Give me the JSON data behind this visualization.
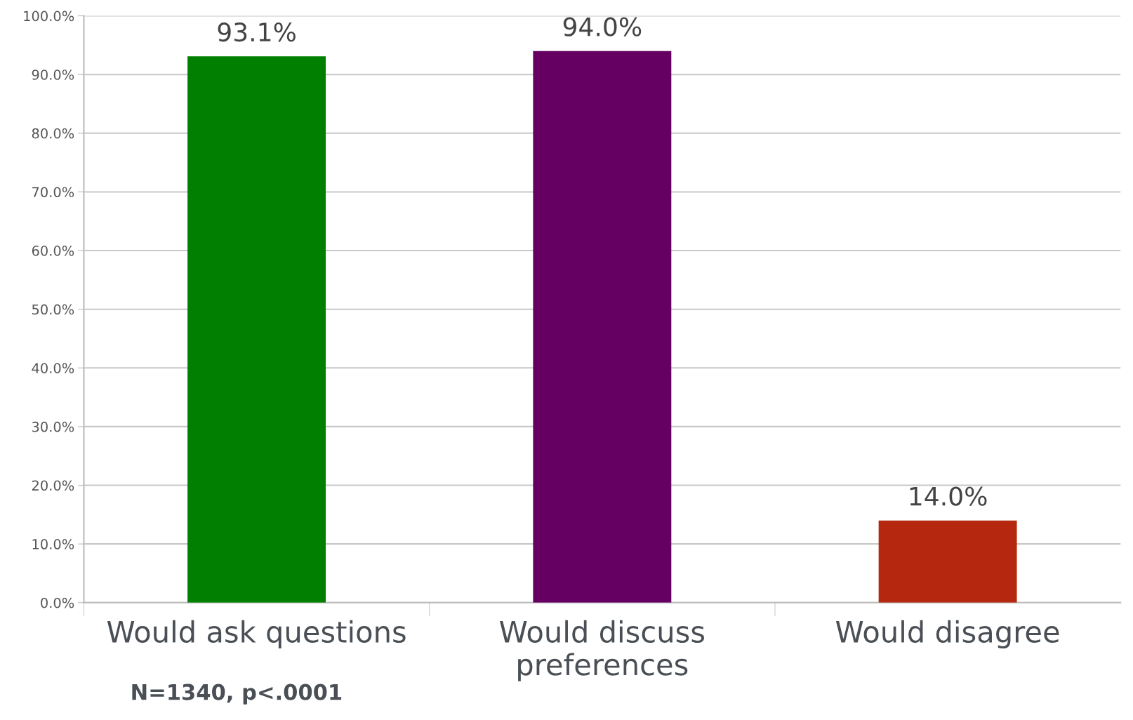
{
  "chart_data": {
    "type": "bar",
    "categories": [
      "Would ask questions",
      "Would discuss\npreferences",
      "Would disagree"
    ],
    "values": [
      93.1,
      94.0,
      14.0
    ],
    "colors": [
      "#007f00",
      "#650062",
      "#b5280f"
    ],
    "value_labels": [
      "93.1%",
      "94.0%",
      "14.0%"
    ],
    "ylim": [
      0,
      100
    ],
    "yticks": [
      {
        "value": 0,
        "label": "0.0%"
      },
      {
        "value": 10,
        "label": "10.0%"
      },
      {
        "value": 20,
        "label": "20.0%"
      },
      {
        "value": 30,
        "label": "30.0%"
      },
      {
        "value": 40,
        "label": "40.0%"
      },
      {
        "value": 50,
        "label": "50.0%"
      },
      {
        "value": 60,
        "label": "60.0%"
      },
      {
        "value": 70,
        "label": "70.0%"
      },
      {
        "value": 80,
        "label": "80.0%"
      },
      {
        "value": 90,
        "label": "90.0%"
      },
      {
        "value": 100,
        "label": "100.0%"
      }
    ],
    "grid": "y",
    "annotations": [
      "N=1340, p<.0001"
    ]
  }
}
